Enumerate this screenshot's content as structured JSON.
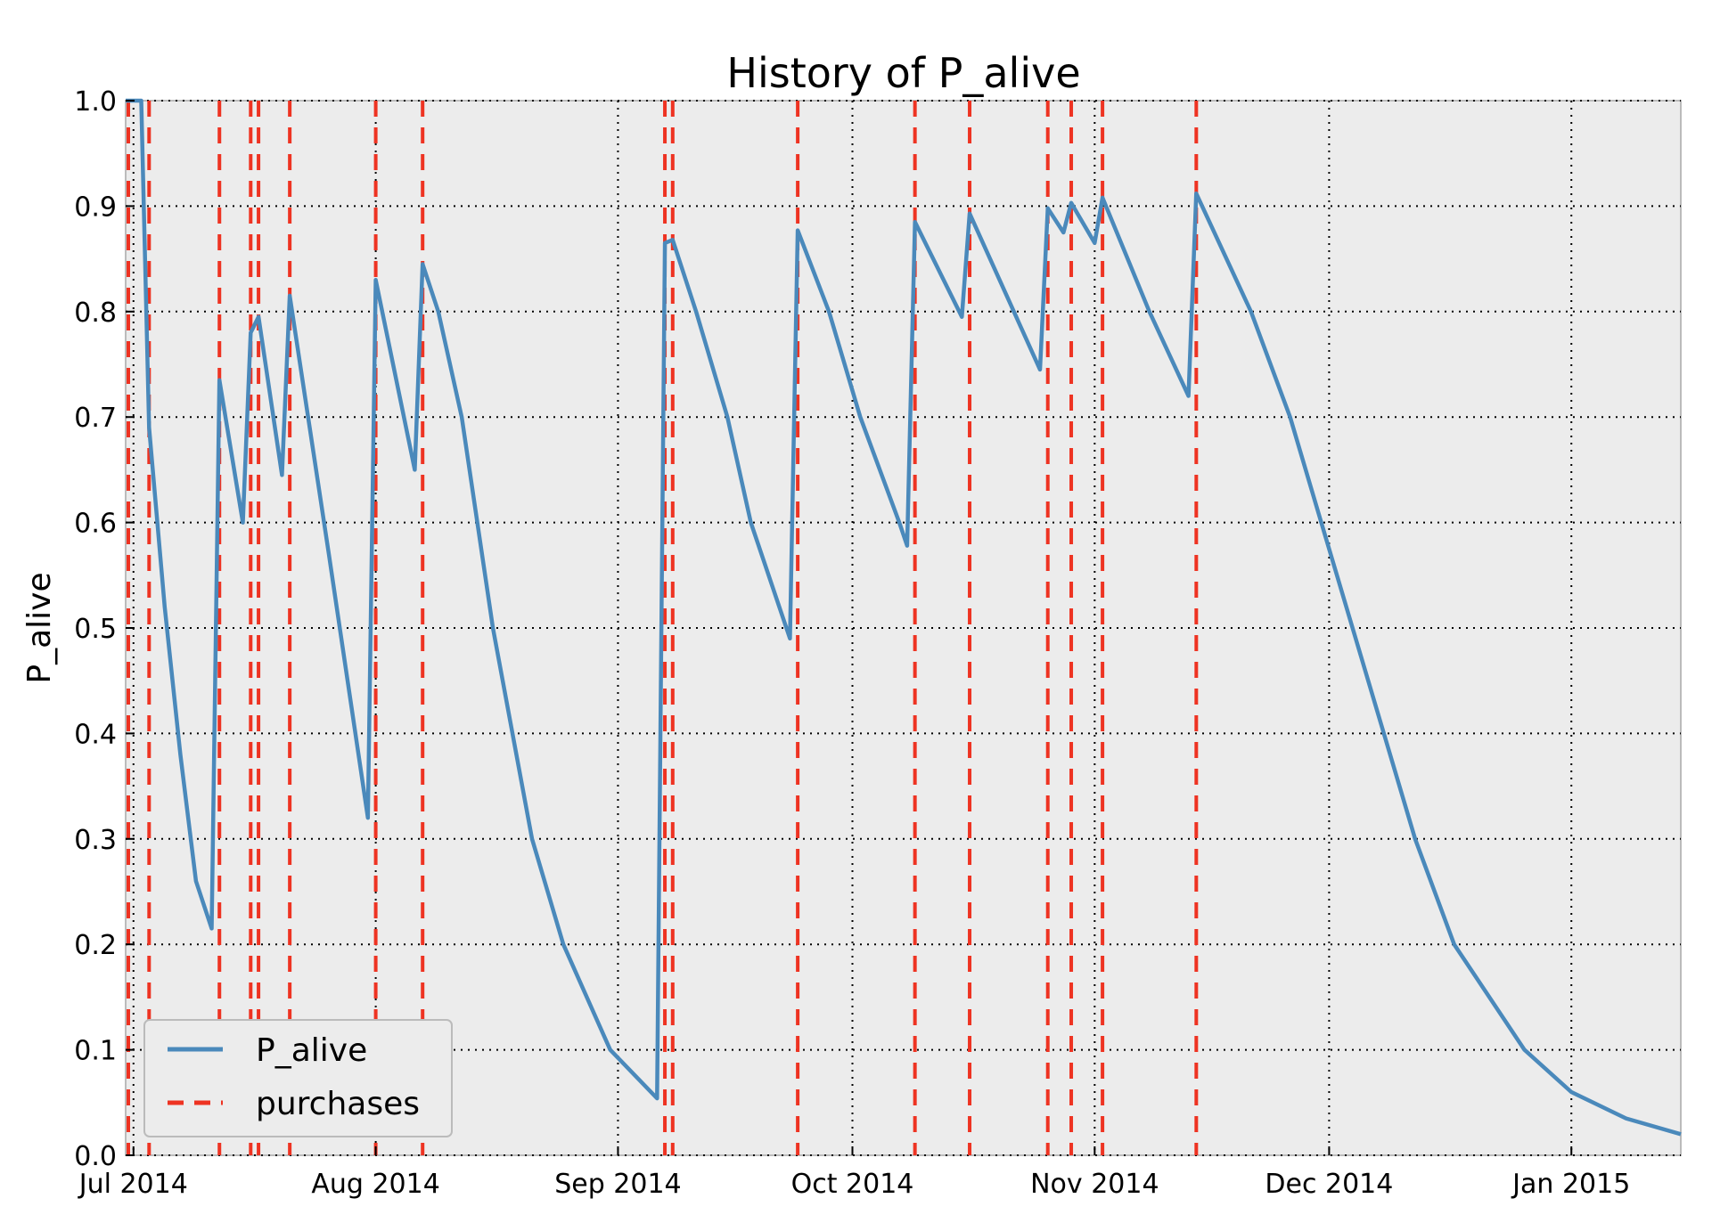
{
  "chart_data": {
    "type": "line",
    "title": "History of P_alive",
    "xlabel": "",
    "ylabel": "P_alive",
    "xlim": [
      "2014-06-30",
      "2015-01-15"
    ],
    "ylim": [
      0.0,
      1.0
    ],
    "grid": true,
    "legend_position": "bottom-left",
    "x_ticks": [
      {
        "date": "2014-07-01",
        "label": "Jul 2014"
      },
      {
        "date": "2014-08-01",
        "label": "Aug 2014"
      },
      {
        "date": "2014-09-01",
        "label": "Sep 2014"
      },
      {
        "date": "2014-10-01",
        "label": "Oct 2014"
      },
      {
        "date": "2014-11-01",
        "label": "Nov 2014"
      },
      {
        "date": "2014-12-01",
        "label": "Dec 2014"
      },
      {
        "date": "2015-01-01",
        "label": "Jan 2015"
      }
    ],
    "y_ticks": [
      {
        "value": 0.0,
        "label": "0.0"
      },
      {
        "value": 0.1,
        "label": "0.1"
      },
      {
        "value": 0.2,
        "label": "0.2"
      },
      {
        "value": 0.3,
        "label": "0.3"
      },
      {
        "value": 0.4,
        "label": "0.4"
      },
      {
        "value": 0.5,
        "label": "0.5"
      },
      {
        "value": 0.6,
        "label": "0.6"
      },
      {
        "value": 0.7,
        "label": "0.7"
      },
      {
        "value": 0.8,
        "label": "0.8"
      },
      {
        "value": 0.9,
        "label": "0.9"
      },
      {
        "value": 1.0,
        "label": "1.0"
      }
    ],
    "series": [
      {
        "name": "P_alive",
        "color": "#4a89bb",
        "style": "solid",
        "points": [
          [
            "2014-06-30",
            1.0
          ],
          [
            "2014-07-02",
            1.0
          ],
          [
            "2014-07-03",
            0.69
          ],
          [
            "2014-07-05",
            0.52
          ],
          [
            "2014-07-07",
            0.38
          ],
          [
            "2014-07-09",
            0.26
          ],
          [
            "2014-07-11",
            0.215
          ],
          [
            "2014-07-12",
            0.735
          ],
          [
            "2014-07-15",
            0.6
          ],
          [
            "2014-07-16",
            0.78
          ],
          [
            "2014-07-17",
            0.795
          ],
          [
            "2014-07-20",
            0.645
          ],
          [
            "2014-07-21",
            0.815
          ],
          [
            "2014-07-26",
            0.57
          ],
          [
            "2014-07-31",
            0.32
          ],
          [
            "2014-08-01",
            0.83
          ],
          [
            "2014-08-06",
            0.65
          ],
          [
            "2014-08-07",
            0.845
          ],
          [
            "2014-08-09",
            0.8
          ],
          [
            "2014-08-12",
            0.7
          ],
          [
            "2014-08-16",
            0.5
          ],
          [
            "2014-08-21",
            0.3
          ],
          [
            "2014-08-25",
            0.2
          ],
          [
            "2014-08-31",
            0.1
          ],
          [
            "2014-09-06",
            0.054
          ],
          [
            "2014-09-07",
            0.865
          ],
          [
            "2014-09-08",
            0.868
          ],
          [
            "2014-09-11",
            0.8
          ],
          [
            "2014-09-15",
            0.7
          ],
          [
            "2014-09-18",
            0.6
          ],
          [
            "2014-09-23",
            0.49
          ],
          [
            "2014-09-24",
            0.877
          ],
          [
            "2014-09-28",
            0.8
          ],
          [
            "2014-10-02",
            0.7
          ],
          [
            "2014-10-07",
            0.6
          ],
          [
            "2014-10-08",
            0.578
          ],
          [
            "2014-10-09",
            0.885
          ],
          [
            "2014-10-15",
            0.795
          ],
          [
            "2014-10-16",
            0.893
          ],
          [
            "2014-10-25",
            0.745
          ],
          [
            "2014-10-26",
            0.898
          ],
          [
            "2014-10-28",
            0.875
          ],
          [
            "2014-10-29",
            0.903
          ],
          [
            "2014-11-01",
            0.865
          ],
          [
            "2014-11-02",
            0.908
          ],
          [
            "2014-11-08",
            0.8
          ],
          [
            "2014-11-13",
            0.72
          ],
          [
            "2014-11-14",
            0.912
          ],
          [
            "2014-11-21",
            0.8
          ],
          [
            "2014-11-26",
            0.7
          ],
          [
            "2014-11-30",
            0.6
          ],
          [
            "2014-12-04",
            0.5
          ],
          [
            "2014-12-08",
            0.4
          ],
          [
            "2014-12-12",
            0.3
          ],
          [
            "2014-12-17",
            0.2
          ],
          [
            "2014-12-26",
            0.1
          ],
          [
            "2015-01-01",
            0.06
          ],
          [
            "2015-01-08",
            0.035
          ],
          [
            "2015-01-15",
            0.02
          ]
        ]
      },
      {
        "name": "purchases",
        "color": "#ee3322",
        "style": "dashed",
        "dates": [
          "2014-06-30",
          "2014-07-03",
          "2014-07-12",
          "2014-07-16",
          "2014-07-17",
          "2014-07-21",
          "2014-08-01",
          "2014-08-07",
          "2014-09-07",
          "2014-09-08",
          "2014-09-24",
          "2014-10-09",
          "2014-10-16",
          "2014-10-26",
          "2014-10-29",
          "2014-11-02",
          "2014-11-14"
        ]
      }
    ],
    "legend": [
      {
        "label": "P_alive",
        "color": "#4a89bb",
        "style": "solid"
      },
      {
        "label": "purchases",
        "color": "#ee3322",
        "style": "dashed"
      }
    ]
  }
}
